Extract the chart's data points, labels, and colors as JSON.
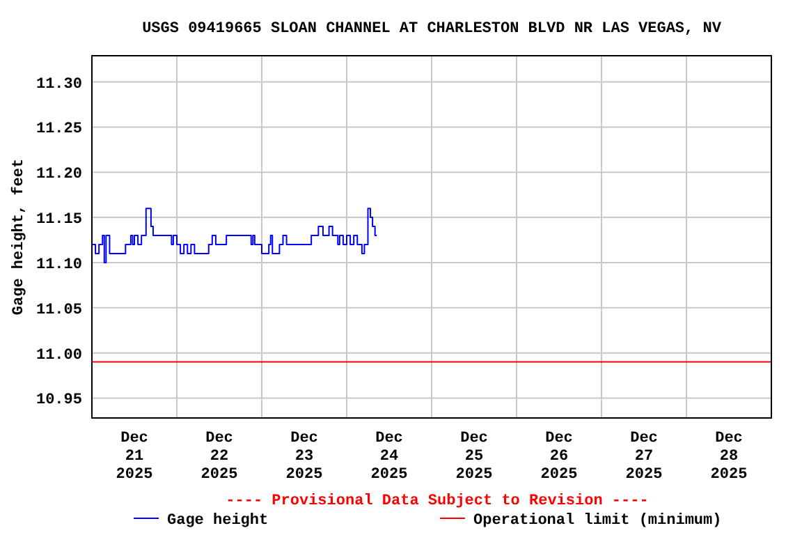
{
  "chart_data": {
    "type": "step",
    "title": "USGS 09419665 SLOAN CHANNEL AT CHARLESTON BLVD NR LAS VEGAS, NV",
    "ylabel": "Gage height, feet",
    "x": [
      "2025-12-21T00:00",
      "2025-12-21T01:00",
      "2025-12-21T02:00",
      "2025-12-21T03:00",
      "2025-12-21T03:30",
      "2025-12-21T04:00",
      "2025-12-21T05:00",
      "2025-12-21T09:30",
      "2025-12-21T11:00",
      "2025-12-21T11:30",
      "2025-12-21T12:00",
      "2025-12-21T13:00",
      "2025-12-21T14:00",
      "2025-12-21T15:18",
      "2025-12-21T16:42",
      "2025-12-21T17:18",
      "2025-12-21T22:30",
      "2025-12-21T23:00",
      "2025-12-22T00:00",
      "2025-12-22T01:00",
      "2025-12-22T02:00",
      "2025-12-22T03:00",
      "2025-12-22T04:00",
      "2025-12-22T05:00",
      "2025-12-22T09:00",
      "2025-12-22T10:00",
      "2025-12-22T11:00",
      "2025-12-22T14:00",
      "2025-12-22T21:00",
      "2025-12-22T21:30",
      "2025-12-22T22:00",
      "2025-12-23T00:00",
      "2025-12-23T02:00",
      "2025-12-23T02:30",
      "2025-12-23T03:00",
      "2025-12-23T05:00",
      "2025-12-23T06:00",
      "2025-12-23T07:00",
      "2025-12-23T14:00",
      "2025-12-23T16:00",
      "2025-12-23T17:18",
      "2025-12-23T19:00",
      "2025-12-23T20:00",
      "2025-12-23T21:30",
      "2025-12-23T22:00",
      "2025-12-23T23:00",
      "2025-12-24T00:00",
      "2025-12-24T01:00",
      "2025-12-24T02:00",
      "2025-12-24T03:00",
      "2025-12-24T04:18",
      "2025-12-24T05:00",
      "2025-12-24T06:00",
      "2025-12-24T06:42",
      "2025-12-24T07:18",
      "2025-12-24T08:00",
      "2025-12-24T08:30"
    ],
    "series": [
      {
        "name": "Gage height",
        "color": "#0000ff",
        "values": [
          11.12,
          11.11,
          11.12,
          11.13,
          11.1,
          11.13,
          11.11,
          11.12,
          11.13,
          11.12,
          11.13,
          11.12,
          11.13,
          11.16,
          11.14,
          11.13,
          11.12,
          11.13,
          11.12,
          11.11,
          11.12,
          11.11,
          11.12,
          11.11,
          11.12,
          11.13,
          11.12,
          11.13,
          11.12,
          11.13,
          11.12,
          11.11,
          11.12,
          11.13,
          11.11,
          11.12,
          11.13,
          11.12,
          11.13,
          11.14,
          11.13,
          11.14,
          11.13,
          11.12,
          11.13,
          11.12,
          11.13,
          11.12,
          11.13,
          11.12,
          11.11,
          11.12,
          11.16,
          11.15,
          11.14,
          11.13,
          11.13
        ]
      }
    ],
    "xlim": [
      "2025-12-21T00:00",
      "2025-12-29T00:00"
    ],
    "xticks": [
      {
        "value": "2025-12-21T12:00",
        "label": "Dec\n21\n2025"
      },
      {
        "value": "2025-12-22T00:00",
        "label": null
      },
      {
        "value": "2025-12-22T12:00",
        "label": "Dec\n22\n2025"
      },
      {
        "value": "2025-12-23T00:00",
        "label": null
      },
      {
        "value": "2025-12-23T12:00",
        "label": "Dec\n23\n2025"
      },
      {
        "value": "2025-12-24T00:00",
        "label": null
      },
      {
        "value": "2025-12-24T12:00",
        "label": "Dec\n24\n2025"
      },
      {
        "value": "2025-12-25T00:00",
        "label": null
      },
      {
        "value": "2025-12-25T12:00",
        "label": "Dec\n25\n2025"
      },
      {
        "value": "2025-12-26T00:00",
        "label": null
      },
      {
        "value": "2025-12-26T12:00",
        "label": "Dec\n26\n2025"
      },
      {
        "value": "2025-12-27T00:00",
        "label": null
      },
      {
        "value": "2025-12-27T12:00",
        "label": "Dec\n27\n2025"
      },
      {
        "value": "2025-12-28T00:00",
        "label": null
      },
      {
        "value": "2025-12-28T12:00",
        "label": "Dec\n28\n2025"
      }
    ],
    "ylim": [
      10.928,
      11.329
    ],
    "yticks": [
      {
        "value": 10.95,
        "label": "10.95"
      },
      {
        "value": 11.0,
        "label": "11.00"
      },
      {
        "value": 11.05,
        "label": "11.05"
      },
      {
        "value": 11.1,
        "label": "11.10"
      },
      {
        "value": 11.15,
        "label": "11.15"
      },
      {
        "value": 11.2,
        "label": "11.20"
      },
      {
        "value": 11.25,
        "label": "11.25"
      },
      {
        "value": 11.3,
        "label": "11.30"
      }
    ],
    "ref_lines": [
      {
        "axis": "y",
        "value": 10.99,
        "label": "Operational limit (minimum)",
        "color": "#ff0000"
      }
    ],
    "annotations": [
      "---- Provisional Data Subject to Revision ----"
    ],
    "grid": true,
    "legend": "bottom"
  }
}
